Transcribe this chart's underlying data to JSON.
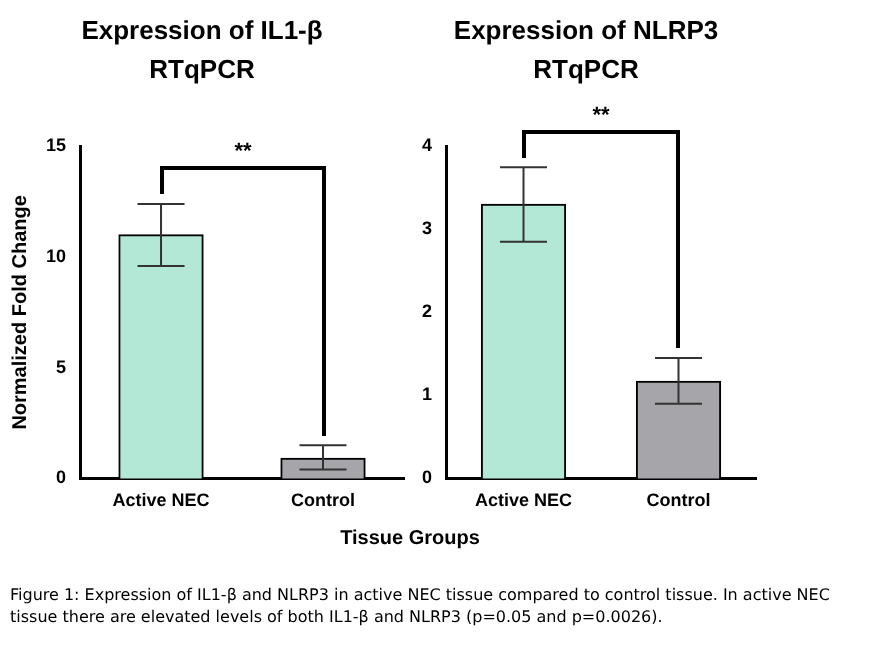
{
  "chart_data": [
    {
      "type": "bar",
      "title": "Expression of IL1-β",
      "subtitle": "RTqPCR",
      "ylabel": "Normalized Fold Change",
      "xlabel": "Tissue Groups",
      "categories": [
        "Active NEC",
        "Control"
      ],
      "values": [
        11,
        0.9
      ],
      "colors": [
        "#b3e8d6",
        "#a6a6aa"
      ],
      "errors": [
        [
          9.6,
          12.4
        ],
        [
          0.4,
          1.5
        ]
      ],
      "ylim": [
        0,
        15
      ],
      "yticks": [
        0,
        5,
        10,
        15
      ],
      "annotations": [
        "**",
        "Figure 1: Expression of IL1-β and NLRP3 in active NEC tissue compared to control tissue. In active NEC tissue there are elevated levels of both IL1-β and NLRP3 (p=0.05 and p=0.0026)."
      ]
    },
    {
      "type": "bar",
      "title": "Expression of NLRP3",
      "subtitle": "RTqPCR",
      "categories": [
        "Active NEC",
        "Control"
      ],
      "values": [
        3.3,
        1.17
      ],
      "colors": [
        "#b3e8d6",
        "#a6a6aa"
      ],
      "errors": [
        [
          2.85,
          3.75
        ],
        [
          0.9,
          1.45
        ]
      ],
      "ylim": [
        0,
        4
      ],
      "yticks": [
        0,
        1,
        2,
        3,
        4
      ],
      "annotations": [
        "**"
      ]
    }
  ]
}
